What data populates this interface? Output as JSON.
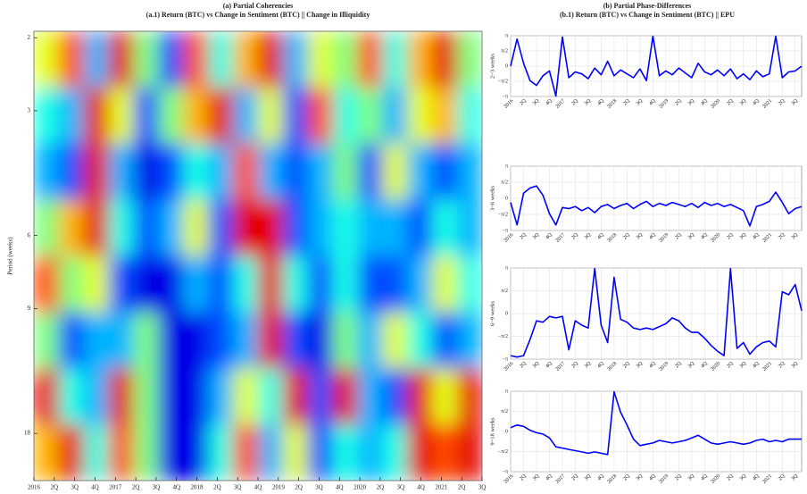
{
  "chart_data": [
    {
      "type": "heatmap",
      "title": "(a) Partial Coherencies",
      "subtitle": "(a.1)  Return (BTC) vs Change in Sentiment (BTC) || Change in Illiquidity",
      "ylabel": "Period (weeks)",
      "log_y": true,
      "ylim": [
        1.93,
        23.4
      ],
      "yticks": [
        2,
        3,
        6,
        9,
        18
      ],
      "xlim": [
        0,
        22
      ],
      "xticks": [
        {
          "value": 0,
          "label": "2016"
        },
        {
          "value": 1,
          "label": "2Q"
        },
        {
          "value": 2,
          "label": "3Q"
        },
        {
          "value": 3,
          "label": "4Q"
        },
        {
          "value": 4,
          "label": "2017"
        },
        {
          "value": 5,
          "label": "2Q"
        },
        {
          "value": 6,
          "label": "3Q"
        },
        {
          "value": 7,
          "label": "4Q"
        },
        {
          "value": 8,
          "label": "2018"
        },
        {
          "value": 9,
          "label": "2Q"
        },
        {
          "value": 10,
          "label": "3Q"
        },
        {
          "value": 11,
          "label": "4Q"
        },
        {
          "value": 12,
          "label": "2019"
        },
        {
          "value": 13,
          "label": "2Q"
        },
        {
          "value": 14,
          "label": "3Q"
        },
        {
          "value": 15,
          "label": "4Q"
        },
        {
          "value": 16,
          "label": "2020"
        },
        {
          "value": 17,
          "label": "2Q"
        },
        {
          "value": 18,
          "label": "3Q"
        },
        {
          "value": 19,
          "label": "4Q"
        },
        {
          "value": 20,
          "label": "2021"
        },
        {
          "value": 21,
          "label": "2Q"
        },
        {
          "value": 22,
          "label": "3Q"
        }
      ],
      "values": [
        [
          0.6,
          0.8,
          0.3,
          0.9,
          0.5,
          0.2,
          0.8,
          0.4,
          0.7,
          0.9,
          0.3,
          0.6,
          0.5,
          0.8,
          0.4,
          0.7,
          0.9,
          0.5
        ],
        [
          0.4,
          0.3,
          0.9,
          0.6,
          0.2,
          0.5,
          0.7,
          0.9,
          0.3,
          0.6,
          0.2,
          0.8,
          0.4,
          0.5,
          0.3,
          0.6,
          0.7,
          0.4
        ],
        [
          0.3,
          0.2,
          0.9,
          0.3,
          0.1,
          0.2,
          0.4,
          0.3,
          0.8,
          0.3,
          0.2,
          0.3,
          0.5,
          0.2,
          0.6,
          0.3,
          0.2,
          0.3
        ],
        [
          0.5,
          0.7,
          0.9,
          0.4,
          0.2,
          0.3,
          0.6,
          0.2,
          0.9,
          0.9,
          0.2,
          0.3,
          0.4,
          0.3,
          0.3,
          0.2,
          0.4,
          0.3
        ],
        [
          0.8,
          0.5,
          0.6,
          0.2,
          0.1,
          0.1,
          0.3,
          0.2,
          0.4,
          0.9,
          0.4,
          0.2,
          0.4,
          0.2,
          0.2,
          0.3,
          0.6,
          0.4
        ],
        [
          0.5,
          0.2,
          0.3,
          0.3,
          0.5,
          0.1,
          0.1,
          0.2,
          0.3,
          0.9,
          0.2,
          0.1,
          0.5,
          0.3,
          0.6,
          0.4,
          0.2,
          0.3
        ],
        [
          0.9,
          0.4,
          0.3,
          0.9,
          0.5,
          0.1,
          0.1,
          0.3,
          0.6,
          0.4,
          0.9,
          0.2,
          0.9,
          0.3,
          0.2,
          0.9,
          0.6,
          0.9
        ],
        [
          0.7,
          0.9,
          0.4,
          0.8,
          0.5,
          0.1,
          0.1,
          0.4,
          0.8,
          0.3,
          0.6,
          0.2,
          0.4,
          0.3,
          0.4,
          0.9,
          0.8,
          0.9
        ]
      ]
    },
    {
      "type": "line",
      "title": "(b) Partial Phase-Differences",
      "subtitle": "(b.1) Return (BTC) vs Change in Sentiment (BTC) || EPU",
      "ylabel": "2~3 weeks",
      "color": "#0000ff",
      "xlim": [
        0,
        22.5
      ],
      "ylim": [
        -3.1416,
        3.1416
      ],
      "yticks": [
        {
          "value": -3.1416,
          "label": "−π"
        },
        {
          "value": -1.5708,
          "label": "−π/2"
        },
        0,
        {
          "value": 1.5708,
          "label": "π/2"
        },
        {
          "value": 3.1416,
          "label": "π"
        }
      ],
      "xticks": [
        {
          "value": 0,
          "label": "2016"
        },
        {
          "value": 1,
          "label": "2Q"
        },
        {
          "value": 2,
          "label": "3Q"
        },
        {
          "value": 3,
          "label": "4Q"
        },
        {
          "value": 4,
          "label": "2017"
        },
        {
          "value": 5,
          "label": "2Q"
        },
        {
          "value": 6,
          "label": "3Q"
        },
        {
          "value": 7,
          "label": "4Q"
        },
        {
          "value": 8,
          "label": "2018"
        },
        {
          "value": 9,
          "label": "2Q"
        },
        {
          "value": 10,
          "label": "3Q"
        },
        {
          "value": 11,
          "label": "4Q"
        },
        {
          "value": 12,
          "label": "2019"
        },
        {
          "value": 13,
          "label": "2Q"
        },
        {
          "value": 14,
          "label": "3Q"
        },
        {
          "value": 15,
          "label": "4Q"
        },
        {
          "value": 16,
          "label": "2020"
        },
        {
          "value": 17,
          "label": "2Q"
        },
        {
          "value": 18,
          "label": "3Q"
        },
        {
          "value": 19,
          "label": "4Q"
        },
        {
          "value": 20,
          "label": "2021"
        },
        {
          "value": 21,
          "label": "2Q"
        },
        {
          "value": 22,
          "label": "3Q"
        }
      ],
      "x": [
        0,
        0.5,
        1,
        1.5,
        2,
        2.5,
        3,
        3.5,
        4,
        4.5,
        5,
        5.5,
        6,
        6.5,
        7,
        7.5,
        8,
        8.5,
        9,
        9.5,
        10,
        10.5,
        11,
        11.5,
        12,
        12.5,
        13,
        13.5,
        14,
        14.5,
        15,
        15.5,
        16,
        16.5,
        17,
        17.5,
        18,
        18.5,
        19,
        19.5,
        20,
        20.5,
        21,
        21.5,
        22,
        22.5
      ],
      "values": [
        0,
        2.8,
        0.3,
        -1.5,
        -2,
        -1,
        -0.5,
        -3.1,
        3,
        -1.2,
        -0.6,
        -0.8,
        -1.3,
        -0.2,
        -0.9,
        0.5,
        -1,
        -0.4,
        -0.8,
        -1.2,
        -0.3,
        -1.5,
        3.1,
        -1,
        -0.5,
        -0.9,
        -0.2,
        -0.7,
        -1.2,
        0.3,
        -0.6,
        -0.9,
        -0.4,
        -1,
        -0.3,
        -1.3,
        -0.8,
        -1.4,
        -0.5,
        -1.1,
        -0.8,
        3.1,
        -1.2,
        -0.6,
        -0.5,
        0
      ]
    },
    {
      "type": "line",
      "ylabel": "3~6 weeks",
      "color": "#0000ff",
      "xlim": [
        0,
        22.5
      ],
      "ylim": [
        -3.1416,
        3.1416
      ],
      "yticks": [
        {
          "value": -3.1416,
          "label": "−π"
        },
        {
          "value": -1.5708,
          "label": "−π/2"
        },
        0,
        {
          "value": 1.5708,
          "label": "π/2"
        },
        {
          "value": 3.1416,
          "label": "π"
        }
      ],
      "xticks": [
        {
          "value": 0,
          "label": "2016"
        },
        {
          "value": 1,
          "label": "2Q"
        },
        {
          "value": 2,
          "label": "3Q"
        },
        {
          "value": 3,
          "label": "4Q"
        },
        {
          "value": 4,
          "label": "2017"
        },
        {
          "value": 5,
          "label": "2Q"
        },
        {
          "value": 6,
          "label": "3Q"
        },
        {
          "value": 7,
          "label": "4Q"
        },
        {
          "value": 8,
          "label": "2018"
        },
        {
          "value": 9,
          "label": "2Q"
        },
        {
          "value": 10,
          "label": "3Q"
        },
        {
          "value": 11,
          "label": "4Q"
        },
        {
          "value": 12,
          "label": "2019"
        },
        {
          "value": 13,
          "label": "2Q"
        },
        {
          "value": 14,
          "label": "3Q"
        },
        {
          "value": 15,
          "label": "4Q"
        },
        {
          "value": 16,
          "label": "2020"
        },
        {
          "value": 17,
          "label": "2Q"
        },
        {
          "value": 18,
          "label": "3Q"
        },
        {
          "value": 19,
          "label": "4Q"
        },
        {
          "value": 20,
          "label": "2021"
        },
        {
          "value": 21,
          "label": "2Q"
        },
        {
          "value": 22,
          "label": "3Q"
        }
      ],
      "x": [
        0,
        0.5,
        1,
        1.5,
        2,
        2.5,
        3,
        3.5,
        4,
        4.5,
        5,
        5.5,
        6,
        6.5,
        7,
        7.5,
        8,
        8.5,
        9,
        9.5,
        10,
        10.5,
        11,
        11.5,
        12,
        12.5,
        13,
        13.5,
        14,
        14.5,
        15,
        15.5,
        16,
        16.5,
        17,
        17.5,
        18,
        18.5,
        19,
        19.5,
        20,
        20.5,
        21,
        21.5,
        22,
        22.5
      ],
      "values": [
        -0.4,
        -2.6,
        0.5,
        1.0,
        1.2,
        0.3,
        -1.5,
        -2.6,
        -0.9,
        -1.0,
        -0.8,
        -1.2,
        -0.9,
        -1.4,
        -0.8,
        -0.6,
        -1.0,
        -0.7,
        -0.5,
        -1.0,
        -0.6,
        -0.3,
        -0.8,
        -0.5,
        -0.7,
        -0.4,
        -0.6,
        -0.8,
        -0.5,
        -0.9,
        -0.4,
        -0.7,
        -0.5,
        -0.8,
        -0.6,
        -0.9,
        -1.2,
        -2.7,
        -0.8,
        -0.6,
        -0.3,
        0.6,
        -0.4,
        -1.5,
        -1.0,
        -0.8
      ]
    },
    {
      "type": "line",
      "ylabel": "6~9 weeks",
      "color": "#0000ff",
      "xlim": [
        0,
        22.5
      ],
      "ylim": [
        -3.1416,
        3.1416
      ],
      "yticks": [
        {
          "value": -3.1416,
          "label": "−π"
        },
        {
          "value": -1.5708,
          "label": "−π/2"
        },
        0,
        {
          "value": 1.5708,
          "label": "π/2"
        },
        {
          "value": 3.1416,
          "label": "π"
        }
      ],
      "xticks": [
        {
          "value": 0,
          "label": "2016"
        },
        {
          "value": 1,
          "label": "2Q"
        },
        {
          "value": 2,
          "label": "3Q"
        },
        {
          "value": 3,
          "label": "4Q"
        },
        {
          "value": 4,
          "label": "2017"
        },
        {
          "value": 5,
          "label": "2Q"
        },
        {
          "value": 6,
          "label": "3Q"
        },
        {
          "value": 7,
          "label": "4Q"
        },
        {
          "value": 8,
          "label": "2018"
        },
        {
          "value": 9,
          "label": "2Q"
        },
        {
          "value": 10,
          "label": "3Q"
        },
        {
          "value": 11,
          "label": "4Q"
        },
        {
          "value": 12,
          "label": "2019"
        },
        {
          "value": 13,
          "label": "2Q"
        },
        {
          "value": 14,
          "label": "3Q"
        },
        {
          "value": 15,
          "label": "4Q"
        },
        {
          "value": 16,
          "label": "2020"
        },
        {
          "value": 17,
          "label": "2Q"
        },
        {
          "value": 18,
          "label": "3Q"
        },
        {
          "value": 19,
          "label": "4Q"
        },
        {
          "value": 20,
          "label": "2021"
        },
        {
          "value": 21,
          "label": "2Q"
        },
        {
          "value": 22,
          "label": "3Q"
        }
      ],
      "x": [
        0,
        0.5,
        1,
        1.5,
        2,
        2.5,
        3,
        3.5,
        4,
        4.5,
        5,
        5.5,
        6,
        6.5,
        7,
        7.5,
        8,
        8.5,
        9,
        9.5,
        10,
        10.5,
        11,
        11.5,
        12,
        12.5,
        13,
        13.5,
        14,
        14.5,
        15,
        15.5,
        16,
        16.5,
        17,
        17.5,
        18,
        18.5,
        19,
        19.5,
        20,
        20.5,
        21,
        21.5,
        22,
        22.5
      ],
      "values": [
        -2.9,
        -3.0,
        -2.9,
        -1.8,
        -0.5,
        -0.6,
        -0.2,
        -0.3,
        -0.2,
        -2.5,
        -0.5,
        -0.8,
        -1.0,
        3.1,
        -0.8,
        -2.0,
        2.5,
        -0.4,
        -0.6,
        -1.0,
        -1.1,
        -1.0,
        -1.1,
        -0.9,
        -0.7,
        -0.3,
        -0.5,
        -1.0,
        -1.3,
        -1.3,
        -1.7,
        -2.2,
        -2.6,
        -2.9,
        3.1,
        -2.4,
        -2.0,
        -2.8,
        -2.3,
        -2.0,
        -1.9,
        -2.3,
        1.5,
        1.3,
        2.0,
        0.2
      ]
    },
    {
      "type": "line",
      "ylabel": "9~18 weeks",
      "color": "#0000ff",
      "xlim": [
        0,
        22.5
      ],
      "ylim": [
        -3.1416,
        3.1416
      ],
      "yticks": [
        {
          "value": -3.1416,
          "label": "−π"
        },
        {
          "value": -1.5708,
          "label": "−π/2"
        },
        0,
        {
          "value": 1.5708,
          "label": "π/2"
        },
        {
          "value": 3.1416,
          "label": "π"
        }
      ],
      "xticks": [
        {
          "value": 0,
          "label": "2016"
        },
        {
          "value": 1,
          "label": "2Q"
        },
        {
          "value": 2,
          "label": "3Q"
        },
        {
          "value": 3,
          "label": "4Q"
        },
        {
          "value": 4,
          "label": "2017"
        },
        {
          "value": 5,
          "label": "2Q"
        },
        {
          "value": 6,
          "label": "3Q"
        },
        {
          "value": 7,
          "label": "4Q"
        },
        {
          "value": 8,
          "label": "2018"
        },
        {
          "value": 9,
          "label": "2Q"
        },
        {
          "value": 10,
          "label": "3Q"
        },
        {
          "value": 11,
          "label": "4Q"
        },
        {
          "value": 12,
          "label": "2019"
        },
        {
          "value": 13,
          "label": "2Q"
        },
        {
          "value": 14,
          "label": "3Q"
        },
        {
          "value": 15,
          "label": "4Q"
        },
        {
          "value": 16,
          "label": "2020"
        },
        {
          "value": 17,
          "label": "2Q"
        },
        {
          "value": 18,
          "label": "3Q"
        },
        {
          "value": 19,
          "label": "4Q"
        },
        {
          "value": 20,
          "label": "2021"
        },
        {
          "value": 21,
          "label": "2Q"
        },
        {
          "value": 22,
          "label": "3Q"
        }
      ],
      "x": [
        0,
        0.5,
        1,
        1.5,
        2,
        2.5,
        3,
        3.5,
        4,
        4.5,
        5,
        5.5,
        6,
        6.5,
        7,
        7.5,
        8,
        8.5,
        9,
        9.5,
        10,
        10.5,
        11,
        11.5,
        12,
        12.5,
        13,
        13.5,
        14,
        14.5,
        15,
        15.5,
        16,
        16.5,
        17,
        17.5,
        18,
        18.5,
        19,
        19.5,
        20,
        20.5,
        21,
        21.5,
        22,
        22.5
      ],
      "values": [
        0.3,
        0.5,
        0.4,
        0.1,
        -0.1,
        -0.2,
        -0.5,
        -1.2,
        -1.3,
        -1.4,
        -1.5,
        -1.6,
        -1.7,
        -1.6,
        -1.7,
        -1.8,
        3.1,
        1.5,
        0.5,
        -0.6,
        -1.1,
        -1.0,
        -0.9,
        -0.7,
        -0.8,
        -0.9,
        -0.8,
        -0.7,
        -0.5,
        -0.3,
        -0.6,
        -0.9,
        -1.0,
        -0.9,
        -0.8,
        -0.9,
        -1.0,
        -0.9,
        -0.7,
        -0.6,
        -0.8,
        -0.7,
        -0.8,
        -0.6,
        -0.6,
        -0.6
      ]
    }
  ]
}
